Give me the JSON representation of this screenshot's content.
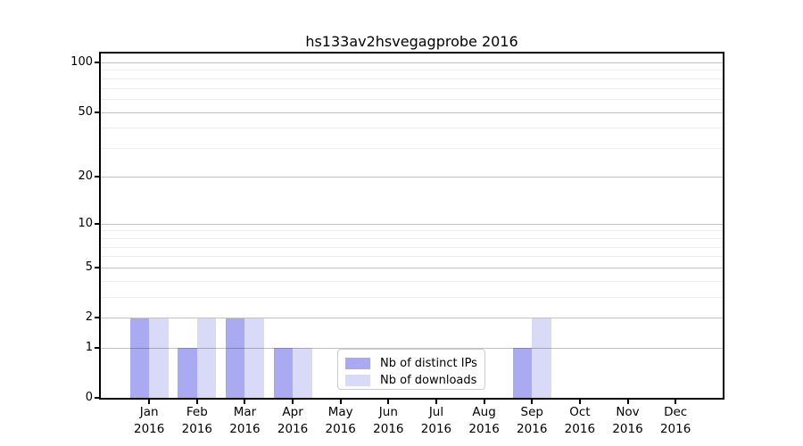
{
  "chart_data": {
    "type": "bar",
    "title": "hs133av2hsvegagprobe 2016",
    "categories": [
      "Jan 2016",
      "Feb 2016",
      "Mar 2016",
      "Apr 2016",
      "May 2016",
      "Jun 2016",
      "Jul 2016",
      "Aug 2016",
      "Sep 2016",
      "Oct 2016",
      "Nov 2016",
      "Dec 2016"
    ],
    "series": [
      {
        "name": "Nb of distinct IPs",
        "color": "#aaaaf2",
        "values": [
          2,
          1,
          2,
          1,
          0,
          0,
          0,
          0,
          1,
          0,
          0,
          0
        ]
      },
      {
        "name": "Nb of downloads",
        "color": "#d9d9f8",
        "values": [
          2,
          2,
          2,
          1,
          0,
          0,
          0,
          0,
          2,
          0,
          0,
          0
        ]
      }
    ],
    "yscale": "log1p",
    "ylim": [
      0,
      100
    ],
    "y_major_ticks": [
      0,
      1,
      2,
      5,
      10,
      20,
      50,
      100
    ],
    "y_minor_ticks": [
      3,
      4,
      6,
      7,
      8,
      9,
      30,
      40,
      60,
      70,
      80,
      90
    ],
    "grid": true,
    "legend_position": "inside-lower-center"
  }
}
